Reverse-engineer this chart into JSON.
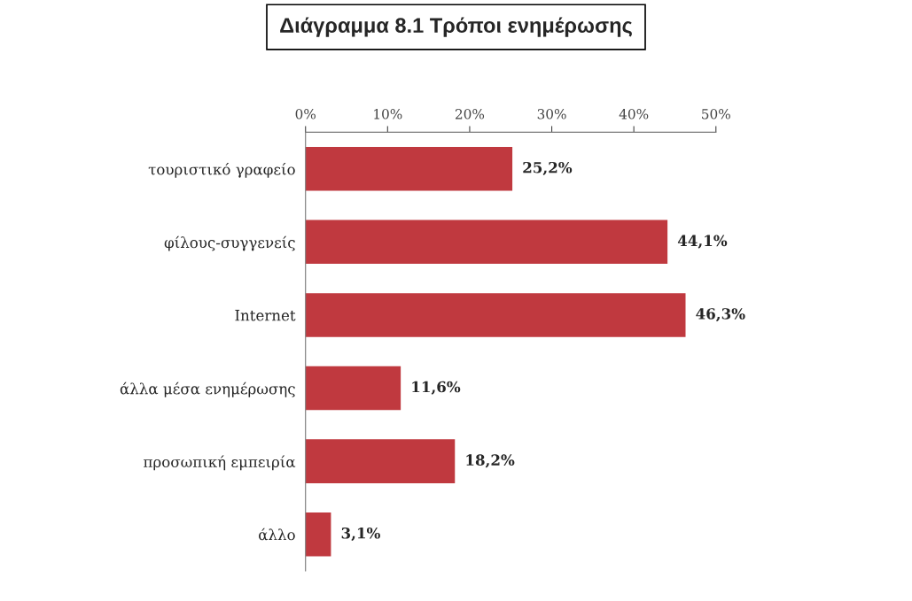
{
  "chart_data": {
    "type": "bar",
    "orientation": "horizontal",
    "title": "Διάγραμμα 8.1 Τρόποι ενημέρωσης",
    "categories": [
      "τουριστικό γραφείο",
      "φίλους-συγγενείς",
      "Internet",
      "άλλα μέσα ενημέρωσης",
      "προσωπική εμπειρία",
      "άλλο"
    ],
    "values": [
      25.2,
      44.1,
      46.3,
      11.6,
      18.2,
      3.1
    ],
    "value_labels": [
      "25,2%",
      "44,1%",
      "46,3%",
      "11,6%",
      "18,2%",
      "3,1%"
    ],
    "color": "#c0393f",
    "xlim": [
      0,
      50
    ],
    "xticks": [
      {
        "value": 0,
        "label": "0%"
      },
      {
        "value": 10,
        "label": "10%"
      },
      {
        "value": 20,
        "label": "20%"
      },
      {
        "value": 30,
        "label": "30%"
      },
      {
        "value": 40,
        "label": "40%"
      },
      {
        "value": 50,
        "label": "50%"
      }
    ],
    "grid": false,
    "legend": false
  }
}
